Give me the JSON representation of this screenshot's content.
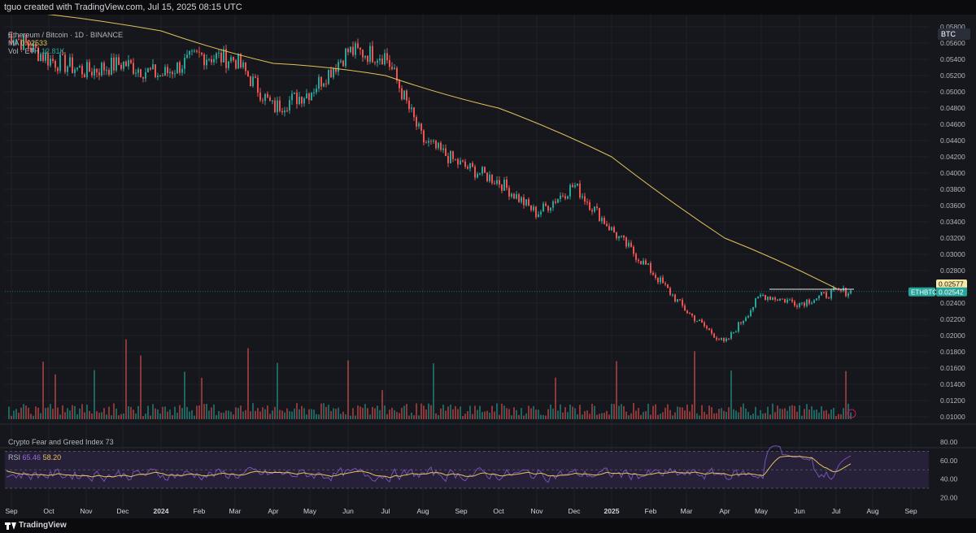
{
  "header": {
    "credit": "tguo created with TradingView.com, Jul 15, 2025 08:15 UTC"
  },
  "legend": {
    "pair": "Ethereum / Bitcoin · 1D · BINANCE",
    "ma_label": "MA",
    "ma_value": "0.02533",
    "vol_label": "Vol · ETH",
    "vol_value": "12.81K"
  },
  "indicators": {
    "fear_greed_label": "Crypto Fear and Greed Index",
    "fear_greed_value": "73",
    "rsi_label": "RSI",
    "rsi_value": "65.46",
    "rsi_ma_value": "58.20"
  },
  "currency_badge": "BTC",
  "price_axis": {
    "labels": [
      "0.05800",
      "0.05600",
      "0.05400",
      "0.05200",
      "0.05000",
      "0.04800",
      "0.04600",
      "0.04400",
      "0.04200",
      "0.04000",
      "0.03800",
      "0.03600",
      "0.03400",
      "0.03200",
      "0.03000",
      "0.02800",
      "0.02400",
      "0.02200",
      "0.02000",
      "0.01800",
      "0.01600",
      "0.01400",
      "0.01200",
      "0.01000"
    ],
    "ma_tag": "0.02577",
    "symbol_tag": "ETHBTC",
    "price_tag": "0.02542"
  },
  "rsi_axis": {
    "labels": [
      "80.00",
      "60.00",
      "40.00",
      "20.00"
    ]
  },
  "time_axis": {
    "labels": [
      "Sep",
      "Oct",
      "Nov",
      "Dec",
      "2024",
      "Feb",
      "Mar",
      "Apr",
      "May",
      "Jun",
      "Jul",
      "Aug",
      "Sep",
      "Oct",
      "Nov",
      "Dec",
      "2025",
      "Feb",
      "Mar",
      "Apr",
      "May",
      "Jun",
      "Jul",
      "Aug",
      "Sep"
    ],
    "bold": [
      "2024",
      "2025"
    ]
  },
  "footer": {
    "brand": "TradingView"
  },
  "colors": {
    "up": "#26a69a",
    "down": "#ef5350",
    "ma": "#e3c35a",
    "rsi_line": "#7e57c2",
    "rsi_ma": "#e3c35a",
    "rsi_band": "#2a2440",
    "grid": "#1f2129",
    "axis_text": "#b2b5be"
  },
  "chart_data": {
    "type": "candlestick",
    "symbol": "ETHBTC",
    "timeframe": "1D",
    "ylim": [
      0.0095,
      0.0595
    ],
    "key_price_points": [
      {
        "x": "Sep 2023",
        "y": 0.057
      },
      {
        "x": "Oct 2023",
        "y": 0.054
      },
      {
        "x": "Nov 2023",
        "y": 0.0525
      },
      {
        "x": "Dec 2023",
        "y": 0.0535
      },
      {
        "x": "Jan 2024",
        "y": 0.052
      },
      {
        "x": "Feb 2024",
        "y": 0.0545
      },
      {
        "x": "Mar 2024",
        "y": 0.054
      },
      {
        "x": "Apr 2024",
        "y": 0.048
      },
      {
        "x": "May 2024",
        "y": 0.05
      },
      {
        "x": "Jun 2024",
        "y": 0.055
      },
      {
        "x": "Jul 2024",
        "y": 0.0545
      },
      {
        "x": "Aug 2024",
        "y": 0.044
      },
      {
        "x": "Sep 2024",
        "y": 0.041
      },
      {
        "x": "Oct 2024",
        "y": 0.039
      },
      {
        "x": "Nov 2024",
        "y": 0.035
      },
      {
        "x": "Dec 2024",
        "y": 0.0385
      },
      {
        "x": "Jan 2025",
        "y": 0.033
      },
      {
        "x": "Feb 2025",
        "y": 0.028
      },
      {
        "x": "Mar 2025",
        "y": 0.023
      },
      {
        "x": "Apr 2025",
        "y": 0.019
      },
      {
        "x": "May 2025",
        "y": 0.025
      },
      {
        "x": "Jun 2025",
        "y": 0.024
      },
      {
        "x": "Jul 2025",
        "y": 0.0254
      }
    ],
    "ma_points": [
      {
        "x": "Sep 2023",
        "y": 0.06
      },
      {
        "x": "Jan 2024",
        "y": 0.0575
      },
      {
        "x": "Apr 2024",
        "y": 0.0535
      },
      {
        "x": "Jul 2024",
        "y": 0.052
      },
      {
        "x": "Oct 2024",
        "y": 0.048
      },
      {
        "x": "Jan 2025",
        "y": 0.042
      },
      {
        "x": "Apr 2025",
        "y": 0.032
      },
      {
        "x": "Jul 2025",
        "y": 0.0258
      }
    ],
    "rsi_ylim": [
      15,
      87
    ],
    "rsi_levels": [
      70,
      50,
      30
    ]
  }
}
